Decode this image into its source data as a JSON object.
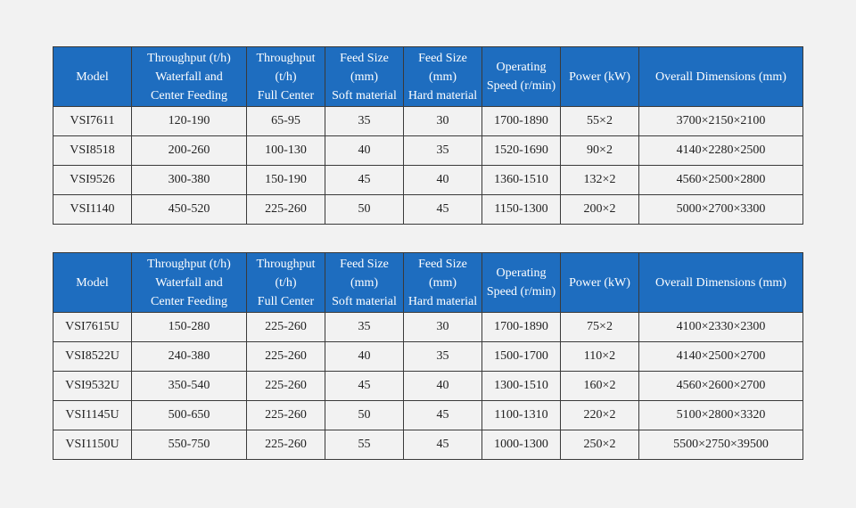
{
  "tables": [
    {
      "headers": [
        [
          "Model"
        ],
        [
          "Throughput (t/h)",
          "Waterfall and",
          "Center Feeding"
        ],
        [
          "Throughput",
          "(t/h)",
          "Full Center"
        ],
        [
          "Feed Size",
          "(mm)",
          "Soft material"
        ],
        [
          "Feed Size",
          "(mm)",
          "Hard material"
        ],
        [
          "Operating",
          "Speed (r/min)"
        ],
        [
          "Power (kW)"
        ],
        [
          "Overall Dimensions (mm)"
        ]
      ],
      "rows": [
        [
          "VSI7611",
          "120-190",
          "65-95",
          "35",
          "30",
          "1700-1890",
          "55×2",
          "3700×2150×2100"
        ],
        [
          "VSI8518",
          "200-260",
          "100-130",
          "40",
          "35",
          "1520-1690",
          "90×2",
          "4140×2280×2500"
        ],
        [
          "VSI9526",
          "300-380",
          "150-190",
          "45",
          "40",
          "1360-1510",
          "132×2",
          "4560×2500×2800"
        ],
        [
          "VSI1140",
          "450-520",
          "225-260",
          "50",
          "45",
          "1150-1300",
          "200×2",
          "5000×2700×3300"
        ]
      ]
    },
    {
      "headers": [
        [
          "Model"
        ],
        [
          "Throughput (t/h)",
          "Waterfall and",
          "Center Feeding"
        ],
        [
          "Throughput",
          "(t/h)",
          "Full Center"
        ],
        [
          "Feed Size",
          "(mm)",
          "Soft material"
        ],
        [
          "Feed Size",
          "(mm)",
          "Hard material"
        ],
        [
          "Operating",
          "Speed (r/min)"
        ],
        [
          "Power (kW)"
        ],
        [
          "Overall Dimensions (mm)"
        ]
      ],
      "rows": [
        [
          "VSI7615U",
          "150-280",
          "225-260",
          "35",
          "30",
          "1700-1890",
          "75×2",
          "4100×2330×2300"
        ],
        [
          "VSI8522U",
          "240-380",
          "225-260",
          "40",
          "35",
          "1500-1700",
          "110×2",
          "4140×2500×2700"
        ],
        [
          "VSI9532U",
          "350-540",
          "225-260",
          "45",
          "40",
          "1300-1510",
          "160×2",
          "4560×2600×2700"
        ],
        [
          "VSI1145U",
          "500-650",
          "225-260",
          "50",
          "45",
          "1100-1310",
          "220×2",
          "5100×2800×3320"
        ],
        [
          "VSI1150U",
          "550-750",
          "225-260",
          "55",
          "45",
          "1000-1300",
          "250×2",
          "5500×2750×39500"
        ]
      ]
    }
  ]
}
